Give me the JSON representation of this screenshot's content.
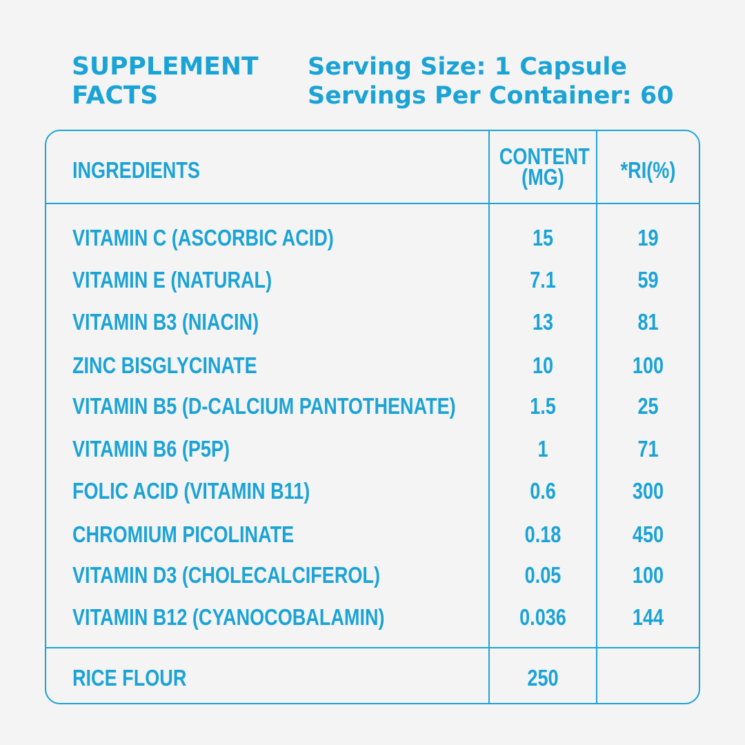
{
  "header": {
    "title_line1": "SUPPLEMENT",
    "title_line2": "FACTS",
    "serving_size": "Serving Size: 1 Capsule",
    "servings_per_container": "Servings Per Container: 60"
  },
  "table": {
    "columns": {
      "ingredients": "INGREDIENTS",
      "content_line1": "CONTENT",
      "content_line2": "(MG)",
      "ri": "*RI(%)"
    },
    "rows": [
      {
        "name": "VITAMIN C (ASCORBIC ACID)",
        "content": "15",
        "ri": "19"
      },
      {
        "name": "VITAMIN E (NATURAL)",
        "content": "7.1",
        "ri": "59"
      },
      {
        "name": "VITAMIN B3 (NIACIN)",
        "content": "13",
        "ri": "81"
      },
      {
        "name": "ZINC BISGLYCINATE",
        "content": "10",
        "ri": "100"
      },
      {
        "name": "VITAMIN B5 (D-CALCIUM PANTOTHENATE)",
        "content": "1.5",
        "ri": "25"
      },
      {
        "name": "VITAMIN B6 (P5P)",
        "content": "1",
        "ri": "71"
      },
      {
        "name": "FOLIC ACID (VITAMIN B11)",
        "content": "0.6",
        "ri": "300"
      },
      {
        "name": "CHROMIUM PICOLINATE",
        "content": "0.18",
        "ri": "450"
      },
      {
        "name": "VITAMIN D3 (CHOLECALCIFEROL)",
        "content": "0.05",
        "ri": "100"
      },
      {
        "name": "VITAMIN B12 (CYANOCOBALAMIN)",
        "content": "0.036",
        "ri": "144"
      }
    ],
    "footer": {
      "name": "RICE FLOUR",
      "content": "250",
      "ri": ""
    }
  },
  "colors": {
    "accent": "#1ba3d6",
    "background": "#f4f4f4"
  }
}
